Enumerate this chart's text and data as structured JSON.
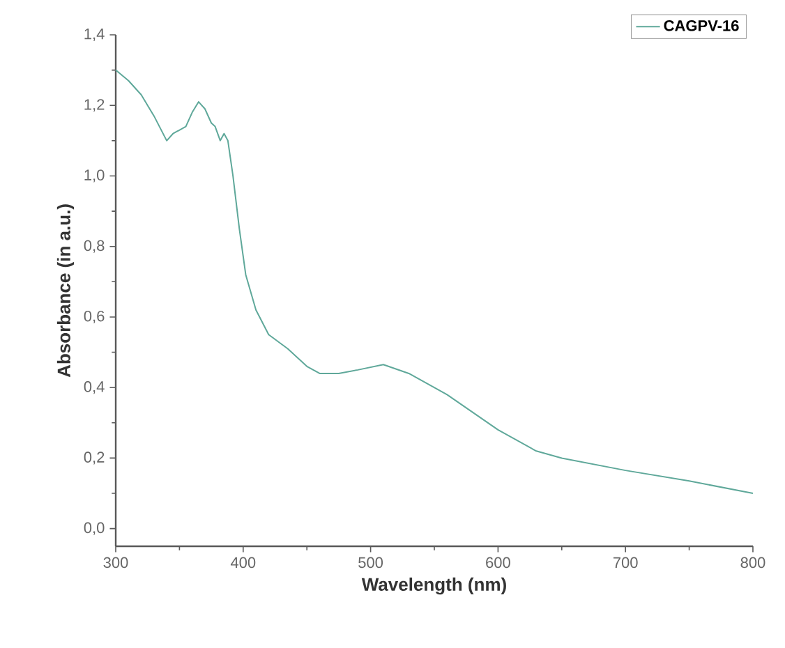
{
  "chart_data": {
    "type": "line",
    "xlabel": "Wavelength (nm)",
    "ylabel": "Absorbance (in a.u.)",
    "xlim": [
      300,
      800
    ],
    "xticks": [
      300,
      400,
      500,
      600,
      700,
      800
    ],
    "ylim": [
      -0.05,
      1.4
    ],
    "yticks": [
      {
        "value": 0,
        "label": "0,0"
      },
      {
        "value": 0.2,
        "label": "0,2"
      },
      {
        "value": 0.4,
        "label": "0,4"
      },
      {
        "value": 0.6,
        "label": "0,6"
      },
      {
        "value": 0.8,
        "label": "0,8"
      },
      {
        "value": 1.0,
        "label": "1,0"
      },
      {
        "value": 1.2,
        "label": "1,2"
      },
      {
        "value": 1.4,
        "label": "1,4"
      }
    ],
    "legend": "top right",
    "grid": false,
    "marker": "none",
    "line_style": "solid",
    "series": [
      {
        "name": "CAGPV-16",
        "color": "#5fa89a",
        "x": [
          300,
          310,
          320,
          330,
          340,
          345,
          355,
          360,
          365,
          370,
          375,
          378,
          382,
          385,
          388,
          392,
          397,
          402,
          410,
          420,
          435,
          450,
          460,
          475,
          490,
          510,
          530,
          560,
          600,
          630,
          650,
          700,
          750,
          800
        ],
        "values": [
          1.3,
          1.27,
          1.23,
          1.17,
          1.1,
          1.12,
          1.14,
          1.18,
          1.21,
          1.19,
          1.15,
          1.14,
          1.1,
          1.12,
          1.1,
          1.0,
          0.85,
          0.72,
          0.62,
          0.55,
          0.51,
          0.46,
          0.44,
          0.44,
          0.45,
          0.465,
          0.44,
          0.38,
          0.28,
          0.22,
          0.2,
          0.165,
          0.135,
          0.1
        ]
      }
    ]
  }
}
